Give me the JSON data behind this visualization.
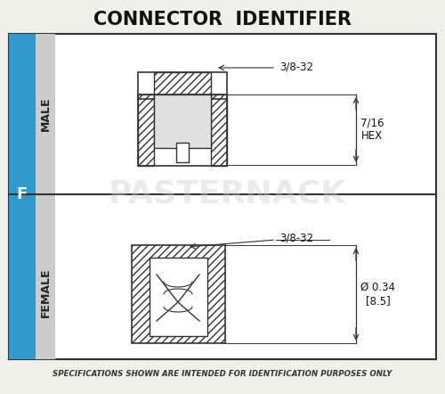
{
  "title": "CONNECTOR  IDENTIFIER",
  "bg_color": "#f0f0eb",
  "border_color": "#333333",
  "blue_color": "#3399cc",
  "gray_color": "#cccccc",
  "label_f": "F",
  "label_male": "MALE",
  "label_female": "FEMALE",
  "dim_male_thread": "3/8-32",
  "dim_male_hex": "7/16\nHEX",
  "dim_female_thread": "3/8-32",
  "dim_female_dia": "Ø 0.34\n[8.5]",
  "footer": "SPECIFICATIONS SHOWN ARE INTENDED FOR IDENTIFICATION PURPOSES ONLY",
  "watermark": "PASTERNACK",
  "draw_color": "#333333"
}
